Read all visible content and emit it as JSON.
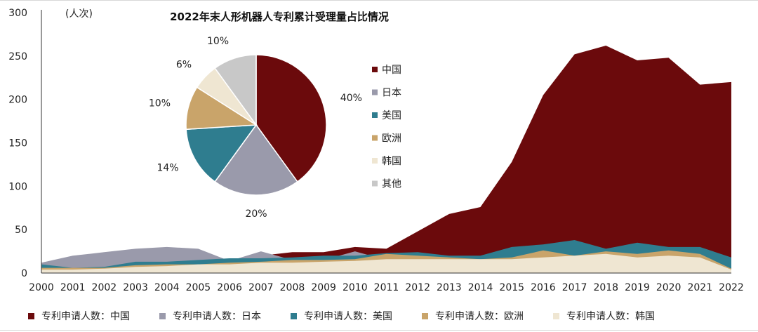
{
  "chart_data": [
    {
      "type": "area",
      "stacked": false,
      "ylim": [
        0,
        300
      ],
      "yticks": [
        "0",
        "50",
        "100",
        "150",
        "200",
        "250",
        "300"
      ],
      "yunit": "(人次)",
      "categories": [
        "2000",
        "2001",
        "2002",
        "2003",
        "2004",
        "2005",
        "2006",
        "2007",
        "2008",
        "2009",
        "2010",
        "2011",
        "2012",
        "2013",
        "2014",
        "2015",
        "2016",
        "2017",
        "2018",
        "2019",
        "2020",
        "2021",
        "2022"
      ],
      "series": [
        {
          "name": "专利申请人数：中国",
          "color": "#6b0a0c",
          "values": [
            2,
            3,
            3,
            4,
            6,
            8,
            12,
            20,
            24,
            24,
            30,
            28,
            48,
            68,
            76,
            128,
            205,
            252,
            262,
            245,
            248,
            217,
            220
          ]
        },
        {
          "name": "专利申请人数：日本",
          "color": "#9a9aab",
          "values": [
            12,
            20,
            24,
            28,
            30,
            28,
            14,
            25,
            15,
            15,
            25,
            15,
            10,
            10,
            10,
            10,
            10,
            10,
            10,
            10,
            10,
            10,
            10
          ]
        },
        {
          "name": "专利申请人数：美国",
          "color": "#2f7d8f",
          "values": [
            10,
            6,
            7,
            13,
            13,
            15,
            17,
            17,
            18,
            20,
            20,
            23,
            24,
            20,
            20,
            30,
            33,
            38,
            28,
            35,
            30,
            30,
            18
          ]
        },
        {
          "name": "专利申请人数：欧洲",
          "color": "#c9a46a",
          "values": [
            6,
            6,
            6,
            9,
            10,
            10,
            12,
            13,
            15,
            15,
            16,
            22,
            20,
            18,
            16,
            18,
            26,
            20,
            25,
            22,
            26,
            22,
            5
          ]
        },
        {
          "name": "专利申请人数：韩国",
          "color": "#efe6d2",
          "values": [
            4,
            4,
            5,
            7,
            8,
            10,
            10,
            12,
            12,
            13,
            14,
            16,
            16,
            16,
            16,
            16,
            18,
            20,
            22,
            18,
            20,
            18,
            4
          ]
        }
      ]
    },
    {
      "type": "pie",
      "title": "2022年末人形机器人专利累计受理量占比情况",
      "slices": [
        {
          "label": "中国",
          "value": 40,
          "text": "40%",
          "color": "#6b0a0c"
        },
        {
          "label": "日本",
          "value": 20,
          "text": "20%",
          "color": "#9a9aab"
        },
        {
          "label": "美国",
          "value": 14,
          "text": "14%",
          "color": "#2f7d8f"
        },
        {
          "label": "欧洲",
          "value": 10,
          "text": "10%",
          "color": "#c9a46a"
        },
        {
          "label": "韩国",
          "value": 6,
          "text": "6%",
          "color": "#efe6d2"
        },
        {
          "label": "其他",
          "value": 10,
          "text": "10%",
          "color": "#c8c8c8"
        }
      ]
    }
  ]
}
